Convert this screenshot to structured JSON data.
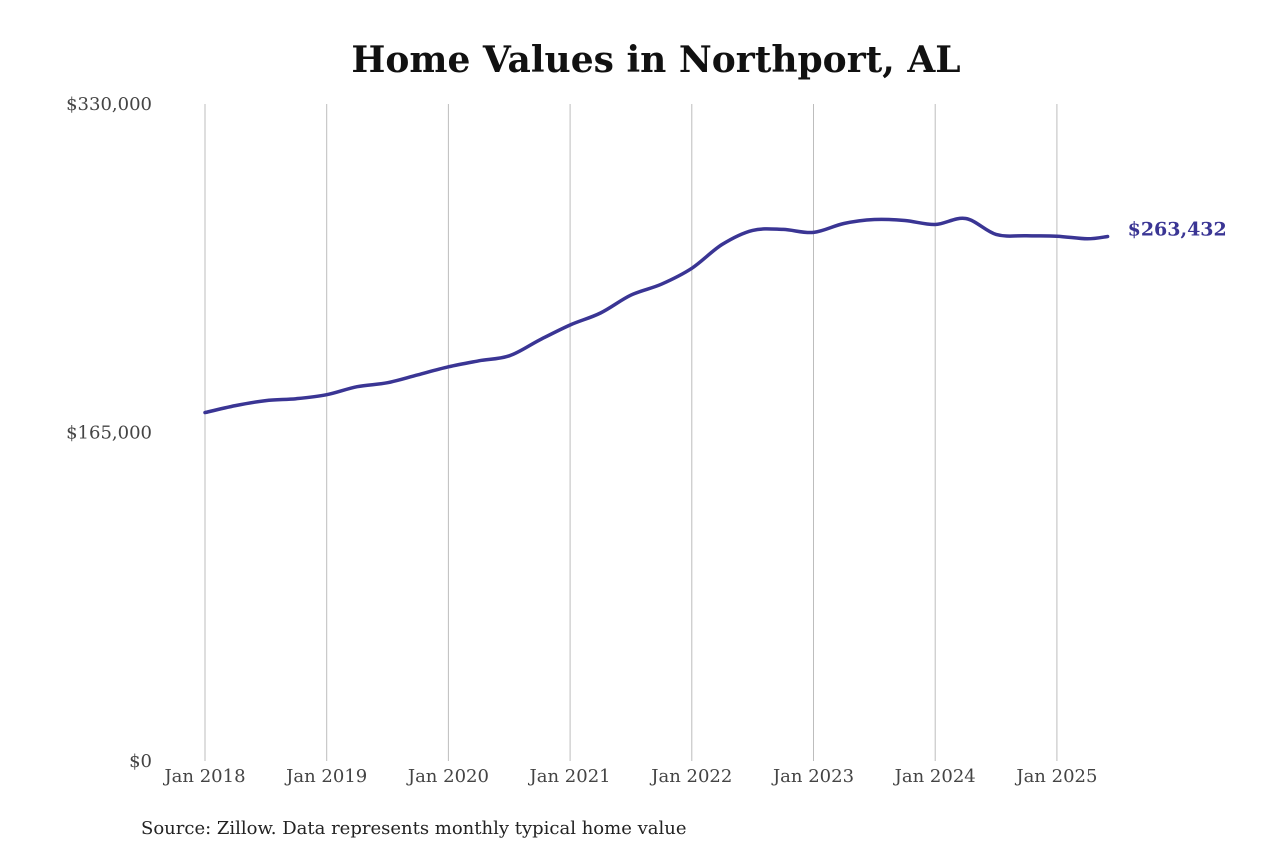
{
  "chart_data": {
    "type": "line",
    "title": "Home Values in Northport, AL",
    "source": "Source: Zillow. Data represents monthly typical home value",
    "y_ticks": [
      "$0",
      "$165,000",
      "$330,000"
    ],
    "ylim": [
      0,
      330000
    ],
    "x_ticks": [
      "Jan 2018",
      "Jan 2019",
      "Jan 2020",
      "Jan 2021",
      "Jan 2022",
      "Jan 2023",
      "Jan 2024",
      "Jan 2025"
    ],
    "x_tick_years": [
      2018,
      2019,
      2020,
      2021,
      2022,
      2023,
      2024,
      2025
    ],
    "grid": "vertical",
    "line_color": "#3a3594",
    "end_label": "$263,432",
    "series": [
      {
        "points": [
          {
            "x": "2018-01",
            "y": 175000
          },
          {
            "x": "2018-04",
            "y": 178500
          },
          {
            "x": "2018-07",
            "y": 181000
          },
          {
            "x": "2018-10",
            "y": 182000
          },
          {
            "x": "2019-01",
            "y": 184000
          },
          {
            "x": "2019-04",
            "y": 188000
          },
          {
            "x": "2019-07",
            "y": 190000
          },
          {
            "x": "2019-10",
            "y": 194000
          },
          {
            "x": "2020-01",
            "y": 198000
          },
          {
            "x": "2020-04",
            "y": 201000
          },
          {
            "x": "2020-07",
            "y": 203500
          },
          {
            "x": "2020-10",
            "y": 211500
          },
          {
            "x": "2021-01",
            "y": 219000
          },
          {
            "x": "2021-04",
            "y": 225000
          },
          {
            "x": "2021-07",
            "y": 234000
          },
          {
            "x": "2021-10",
            "y": 239500
          },
          {
            "x": "2022-01",
            "y": 247500
          },
          {
            "x": "2022-04",
            "y": 259500
          },
          {
            "x": "2022-07",
            "y": 266500
          },
          {
            "x": "2022-10",
            "y": 267000
          },
          {
            "x": "2023-01",
            "y": 265500
          },
          {
            "x": "2023-04",
            "y": 270000
          },
          {
            "x": "2023-07",
            "y": 272000
          },
          {
            "x": "2023-10",
            "y": 271500
          },
          {
            "x": "2024-01",
            "y": 269500
          },
          {
            "x": "2024-04",
            "y": 272500
          },
          {
            "x": "2024-07",
            "y": 264500
          },
          {
            "x": "2024-10",
            "y": 263800
          },
          {
            "x": "2025-01",
            "y": 263600
          },
          {
            "x": "2025-04",
            "y": 262300
          },
          {
            "x": "2025-06",
            "y": 263432
          }
        ]
      }
    ]
  }
}
